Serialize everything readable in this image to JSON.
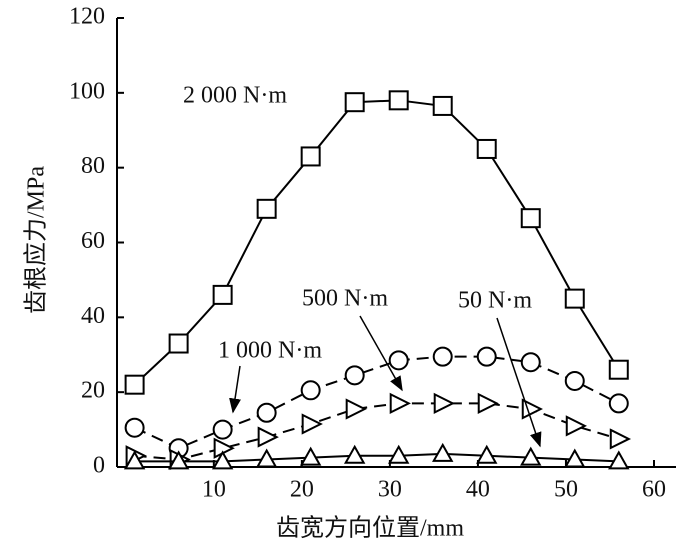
{
  "chart_data": {
    "type": "line",
    "x_label": "齿宽方向位置/mm",
    "y_label": "齿根应力/MPa",
    "x": [
      1,
      6,
      11,
      16,
      21,
      26,
      31,
      36,
      41,
      46,
      51,
      56
    ],
    "series": [
      {
        "name": "2 000 N·m",
        "color": "#000000",
        "marker": "square",
        "dashed": false,
        "values": [
          22,
          33,
          46,
          69,
          83,
          97.5,
          98,
          96.5,
          85,
          66.5,
          45,
          26
        ]
      },
      {
        "name": "1 000 N·m",
        "color": "#000000",
        "marker": "circle",
        "dashed": true,
        "values": [
          10.5,
          5,
          10,
          14.5,
          20.5,
          24.5,
          28.5,
          29.5,
          29.5,
          28,
          23,
          17
        ]
      },
      {
        "name": "500 N·m",
        "color": "#000000",
        "marker": "triangle-right",
        "dashed": true,
        "values": [
          3,
          2,
          5,
          8,
          11.5,
          15.5,
          17,
          17,
          17,
          15.5,
          11,
          7.5
        ]
      },
      {
        "name": "50 N·m",
        "color": "#000000",
        "marker": "triangle-up",
        "dashed": false,
        "values": [
          1.5,
          1.5,
          1.5,
          2,
          2.5,
          3,
          3,
          3.5,
          3,
          2.5,
          2,
          1.5
        ]
      }
    ],
    "xlim": [
      -1,
      62.5
    ],
    "ylim": [
      0,
      120
    ],
    "xticks": [
      10,
      20,
      30,
      40,
      50,
      60
    ],
    "yticks": [
      0,
      20,
      40,
      60,
      80,
      100,
      120
    ],
    "grid": false
  }
}
